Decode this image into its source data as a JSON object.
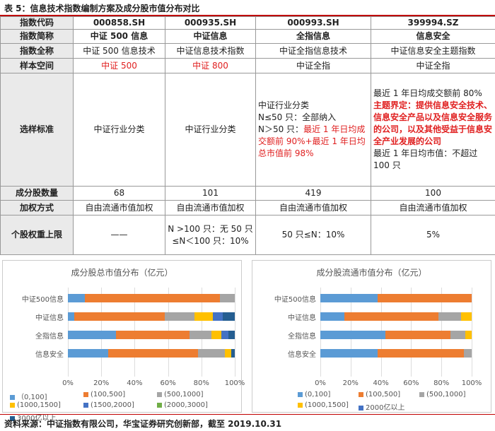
{
  "caption": "表 5：信息技术指数编制方案及成分股市值分布对比",
  "table": {
    "labels": {
      "code": "指数代码",
      "short": "指数简称",
      "full": "指数全称",
      "sample": "样本空间",
      "criteria": "选样标准",
      "count": "成分股数量",
      "weight": "加权方式",
      "cap": "个股权重上限"
    },
    "cols": [
      {
        "code": "000858.SH",
        "short": "中证 500 信息",
        "full": "中证 500 信息技术",
        "sample": "中证 500",
        "criteria": "中证行业分类",
        "count": "68",
        "weight": "自由流通市值加权",
        "cap": "——"
      },
      {
        "code": "000935.SH",
        "short": "中证信息",
        "full": "中证信息技术指数",
        "sample": "中证 800",
        "criteria": "中证行业分类",
        "count": "101",
        "weight": "自由流通市值加权",
        "cap": "N >100 只：无 50 只≤N＜100 只：10%"
      },
      {
        "code": "000993.SH",
        "short": "全指信息",
        "full": "中证全指信息技术",
        "sample": "中证全指",
        "criteria_1": "中证行业分类",
        "criteria_2": "N≤50 只：全部纳入",
        "criteria_3": "N＞50 只：",
        "criteria_4": "最近 1 年日均成交额前 90%+最近 1 年日均总市值前 98%",
        "count": "419",
        "weight": "自由流通市值加权",
        "cap": "50 只≤N：10%"
      },
      {
        "code": "399994.SZ",
        "short": "信息安全",
        "full": "中证信息安全主题指数",
        "sample": "中证全指",
        "criteria_1": "最近 1 年日均成交额前 80%",
        "criteria_2": "主题界定：",
        "criteria_3": "提供信息安全技术、信息安全产品以及信息安全服务的公司，以及其他受益于信息安全产业发展的公司",
        "criteria_4": "最近 1 年日均市值：不超过 100 只",
        "count": "100",
        "weight": "自由流通市值加权",
        "cap": "5%"
      }
    ]
  },
  "chart_data": [
    {
      "type": "bar",
      "title": "成分股总市值分布（亿元）",
      "categories": [
        "中证500信息",
        "中证信息",
        "全指信息",
        "信息安全"
      ],
      "xticks": [
        "0%",
        "20%",
        "40%",
        "60%",
        "80%",
        "100%"
      ],
      "xlim": [
        0,
        100
      ],
      "stacked": true,
      "series": [
        {
          "name": "（0,100]",
          "color": "#5b9bd5",
          "values": [
            10,
            4,
            29,
            24
          ]
        },
        {
          "name": "(100,500]",
          "color": "#ed7d31",
          "values": [
            81,
            54,
            44,
            54
          ]
        },
        {
          "name": "(500,1000]",
          "color": "#a5a5a5",
          "values": [
            9,
            18,
            13,
            16
          ]
        },
        {
          "name": "(1000,1500]",
          "color": "#ffc000",
          "values": [
            0,
            11,
            6,
            4
          ]
        },
        {
          "name": "(1500,2000]",
          "color": "#4472c4",
          "values": [
            0,
            6,
            4,
            0
          ]
        },
        {
          "name": "(2000,3000]",
          "color": "#70ad47",
          "values": [
            0,
            0,
            0,
            0
          ]
        },
        {
          "name": "3000亿以上",
          "color": "#255e91",
          "values": [
            0,
            7,
            4,
            2
          ]
        }
      ],
      "legend": "bottom"
    },
    {
      "type": "bar",
      "title": "成分股流通市值分布（亿元）",
      "categories": [
        "中证500信息",
        "中证信息",
        "全指信息",
        "信息安全"
      ],
      "xticks": [
        "0%",
        "20%",
        "40%",
        "60%",
        "80%",
        "100%"
      ],
      "xlim": [
        0,
        100
      ],
      "stacked": true,
      "series": [
        {
          "name": "(0,100]",
          "color": "#5b9bd5",
          "values": [
            38,
            16,
            43,
            38
          ]
        },
        {
          "name": "(100,500]",
          "color": "#ed7d31",
          "values": [
            62,
            62,
            43,
            57
          ]
        },
        {
          "name": "(500,1000]",
          "color": "#a5a5a5",
          "values": [
            0,
            15,
            10,
            5
          ]
        },
        {
          "name": "(1000,1500]",
          "color": "#ffc000",
          "values": [
            0,
            7,
            4,
            0
          ]
        },
        {
          "name": "2000亿以上",
          "color": "#4472c4",
          "values": [
            0,
            0,
            0,
            0
          ]
        }
      ],
      "legend": "bottom"
    }
  ],
  "source": "资料来源：中证指数有限公司，华宝证券研究创新部，截至 2019.10.31"
}
